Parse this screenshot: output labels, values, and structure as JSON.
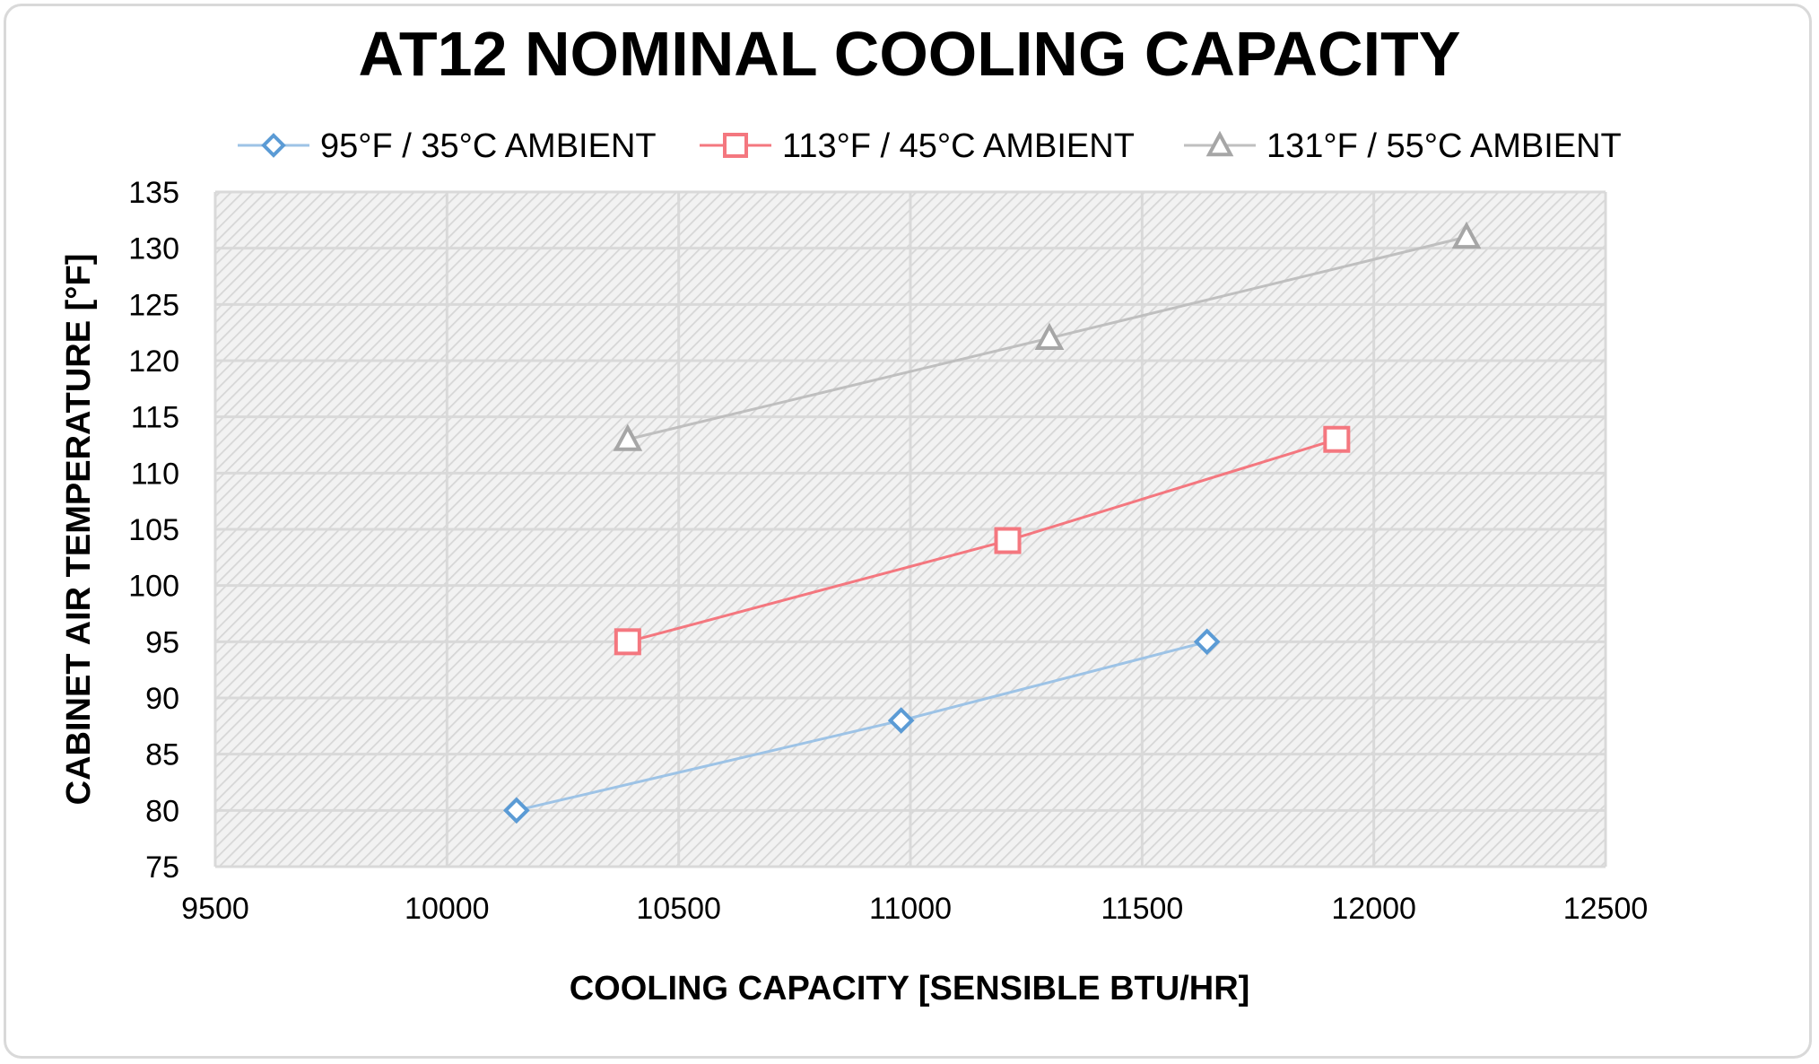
{
  "chart_data": {
    "type": "line",
    "title": "AT12 NOMINAL COOLING CAPACITY",
    "xlabel": "COOLING CAPACITY [SENSIBLE BTU/HR]",
    "ylabel": "CABINET AIR TEMPERATURE  [°F]",
    "xlim": [
      9500,
      12500
    ],
    "ylim": [
      75,
      135
    ],
    "x_ticks": [
      9500,
      10000,
      10500,
      11000,
      11500,
      12000,
      12500
    ],
    "y_ticks": [
      75,
      80,
      85,
      90,
      95,
      100,
      105,
      110,
      115,
      120,
      125,
      130,
      135
    ],
    "grid": true,
    "legend_position": "top",
    "series": [
      {
        "name": "95°F / 35°C AMBIENT",
        "color": "#5b9bd5",
        "line_color": "#9dc3e6",
        "marker": "diamond",
        "points": [
          [
            10150,
            80
          ],
          [
            10980,
            88
          ],
          [
            11640,
            95
          ]
        ]
      },
      {
        "name": "113°F / 45°C AMBIENT",
        "color": "#f4777f",
        "line_color": "#f4777f",
        "marker": "square",
        "points": [
          [
            10390,
            95
          ],
          [
            11210,
            104
          ],
          [
            11920,
            113
          ]
        ]
      },
      {
        "name": "131°F / 55°C AMBIENT",
        "color": "#a6a6a6",
        "line_color": "#bfbfbf",
        "marker": "triangle",
        "points": [
          [
            10390,
            113
          ],
          [
            11300,
            122
          ],
          [
            12200,
            131
          ]
        ]
      }
    ]
  }
}
